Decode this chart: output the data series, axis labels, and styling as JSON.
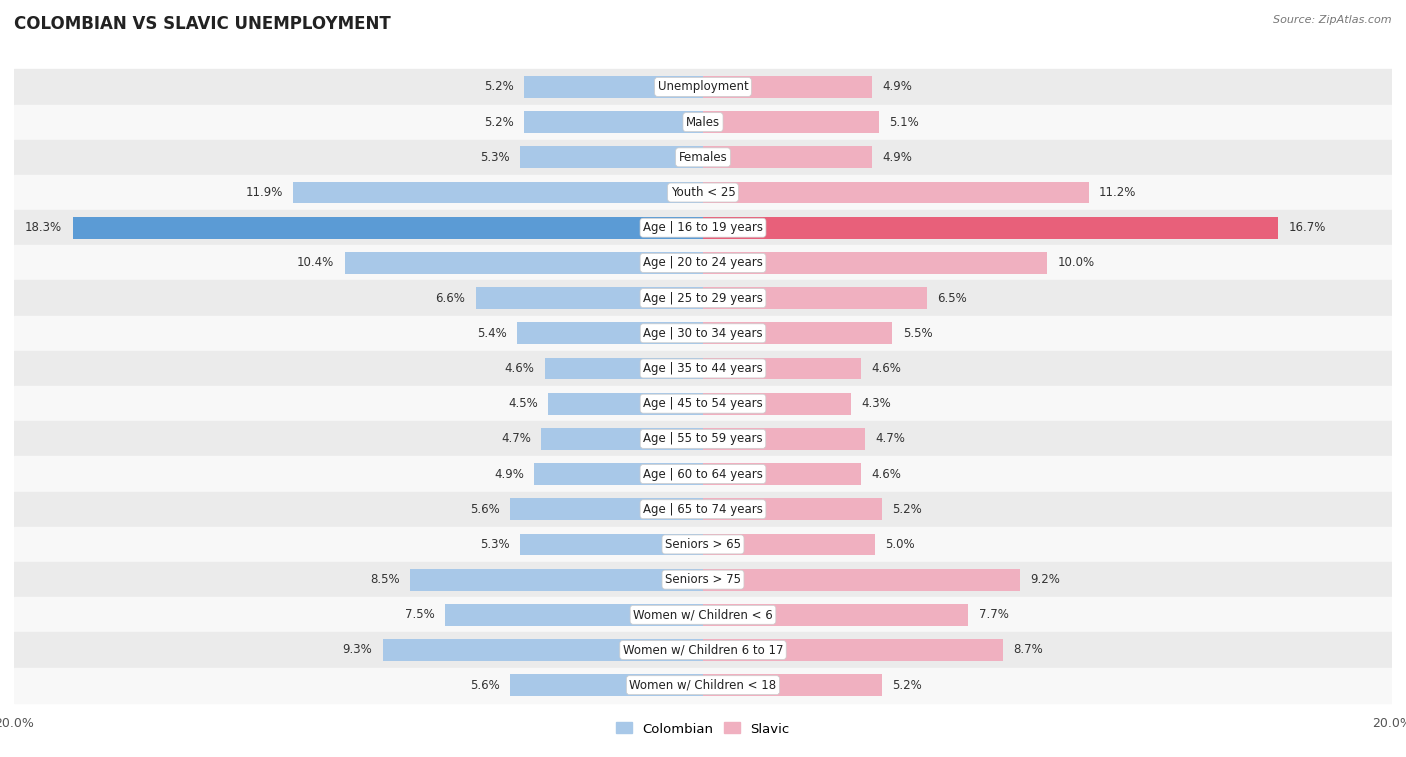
{
  "title": "COLOMBIAN VS SLAVIC UNEMPLOYMENT",
  "source": "Source: ZipAtlas.com",
  "categories": [
    "Unemployment",
    "Males",
    "Females",
    "Youth < 25",
    "Age | 16 to 19 years",
    "Age | 20 to 24 years",
    "Age | 25 to 29 years",
    "Age | 30 to 34 years",
    "Age | 35 to 44 years",
    "Age | 45 to 54 years",
    "Age | 55 to 59 years",
    "Age | 60 to 64 years",
    "Age | 65 to 74 years",
    "Seniors > 65",
    "Seniors > 75",
    "Women w/ Children < 6",
    "Women w/ Children 6 to 17",
    "Women w/ Children < 18"
  ],
  "colombian": [
    5.2,
    5.2,
    5.3,
    11.9,
    18.3,
    10.4,
    6.6,
    5.4,
    4.6,
    4.5,
    4.7,
    4.9,
    5.6,
    5.3,
    8.5,
    7.5,
    9.3,
    5.6
  ],
  "slavic": [
    4.9,
    5.1,
    4.9,
    11.2,
    16.7,
    10.0,
    6.5,
    5.5,
    4.6,
    4.3,
    4.7,
    4.6,
    5.2,
    5.0,
    9.2,
    7.7,
    8.7,
    5.2
  ],
  "colombian_color": "#a8c8e8",
  "slavic_color": "#f0b0c0",
  "colombian_highlight_color": "#5b9bd5",
  "slavic_highlight_color": "#e8607a",
  "row_bg_odd": "#ebebeb",
  "row_bg_even": "#f8f8f8",
  "axis_limit": 20.0,
  "bar_height": 0.62,
  "highlight_rows": [
    4
  ],
  "legend_colombian": "Colombian",
  "legend_slavic": "Slavic",
  "title_fontsize": 12,
  "label_fontsize": 8.5,
  "value_fontsize": 8.5,
  "axis_fontsize": 9
}
